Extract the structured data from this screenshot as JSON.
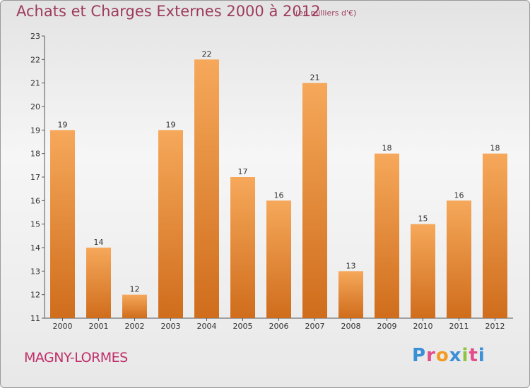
{
  "title": "Achats et Charges Externes 2000 à 2012",
  "unit": "(en milliers d'€)",
  "commune": "MAGNY-LORMES",
  "logo": {
    "text": "Proxiti",
    "letters": [
      "P",
      "r",
      "o",
      "x",
      "i",
      "t",
      "i"
    ],
    "colors": [
      "#3b8fd6",
      "#e24d8a",
      "#f29a23",
      "#3b8fd6",
      "#8cc63f",
      "#e24d8a",
      "#3b8fd6"
    ]
  },
  "colors": {
    "bar_light": "#f6a85a",
    "bar_dark": "#cf6d1c",
    "title": "#9c3b5b",
    "commune": "#c0306a"
  },
  "chart_data": {
    "type": "bar",
    "title": "Achats et Charges Externes 2000 à 2012",
    "subtitle": "(en milliers d'€)",
    "xlabel": "",
    "ylabel": "",
    "categories": [
      "2000",
      "2001",
      "2002",
      "2003",
      "2004",
      "2005",
      "2006",
      "2007",
      "2008",
      "2009",
      "2010",
      "2011",
      "2012"
    ],
    "values": [
      19,
      14,
      12,
      19,
      22,
      17,
      16,
      21,
      13,
      18,
      15,
      16,
      18
    ],
    "ylim": [
      11,
      23
    ],
    "yticks": [
      11,
      12,
      13,
      14,
      15,
      16,
      17,
      18,
      19,
      20,
      21,
      22,
      23
    ],
    "grid": false,
    "legend": "none"
  }
}
